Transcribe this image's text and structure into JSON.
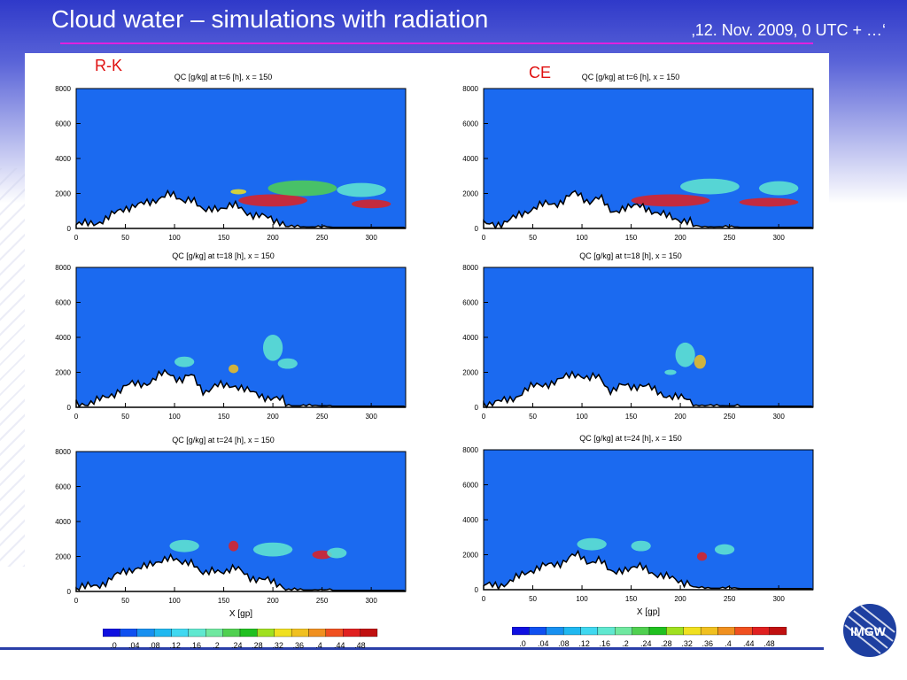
{
  "slide": {
    "title": "Cloud water – simulations with radiation",
    "date": "‚12. Nov. 2009, 0 UTC + …‘"
  },
  "columns": {
    "left": "R-K",
    "right": "CE"
  },
  "colors": {
    "background_field": "#1b6af0",
    "accent_rule": "#e020e0",
    "label_red": "#e01010"
  },
  "axis": {
    "x_ticks": [
      "0",
      "50",
      "100",
      "150",
      "200",
      "250",
      "300"
    ],
    "y_ticks": [
      "0",
      "2000",
      "4000",
      "6000",
      "8000"
    ],
    "xlabel": "X [gp]"
  },
  "colorbar": {
    "labels": [
      ".0",
      ".04",
      ".08",
      ".12",
      ".16",
      ".2",
      ".24",
      ".28",
      ".32",
      ".36",
      ".4",
      ".44",
      ".48"
    ],
    "colors": [
      "#1010e0",
      "#1050f0",
      "#1890f0",
      "#20b8f0",
      "#40d8f0",
      "#60e8d0",
      "#70e8a0",
      "#50d050",
      "#20c020",
      "#a0e020",
      "#f0e020",
      "#f0c020",
      "#f09020",
      "#f05020",
      "#e02020",
      "#c01010"
    ]
  },
  "logo": {
    "text": "IMGW"
  },
  "chart_data": [
    {
      "type": "heatmap",
      "title": "QC [g/kg] at t=6 [h], x = 150",
      "column": "R-K",
      "xlim": [
        0,
        335
      ],
      "ylim": [
        0,
        8000
      ],
      "xlabel": "",
      "ylabel": ""
    },
    {
      "type": "heatmap",
      "title": "QC [g/kg] at t=6 [h], x = 150",
      "column": "CE",
      "xlim": [
        0,
        335
      ],
      "ylim": [
        0,
        8000
      ],
      "xlabel": "",
      "ylabel": ""
    },
    {
      "type": "heatmap",
      "title": "QC [g/kg] at t=18 [h], x = 150",
      "column": "R-K",
      "xlim": [
        0,
        335
      ],
      "ylim": [
        0,
        8000
      ],
      "xlabel": "",
      "ylabel": ""
    },
    {
      "type": "heatmap",
      "title": "QC [g/kg] at t=18 [h], x = 150",
      "column": "CE",
      "xlim": [
        0,
        335
      ],
      "ylim": [
        0,
        8000
      ],
      "xlabel": "",
      "ylabel": ""
    },
    {
      "type": "heatmap",
      "title": "QC [g/kg] at t=24 [h], x = 150",
      "column": "R-K",
      "xlim": [
        0,
        335
      ],
      "ylim": [
        0,
        8000
      ],
      "xlabel": "X [gp]",
      "ylabel": ""
    },
    {
      "type": "heatmap",
      "title": "QC [g/kg] at t=24 [h], x = 150",
      "column": "CE",
      "xlim": [
        0,
        335
      ],
      "ylim": [
        0,
        8000
      ],
      "xlabel": "X [gp]",
      "ylabel": ""
    }
  ]
}
